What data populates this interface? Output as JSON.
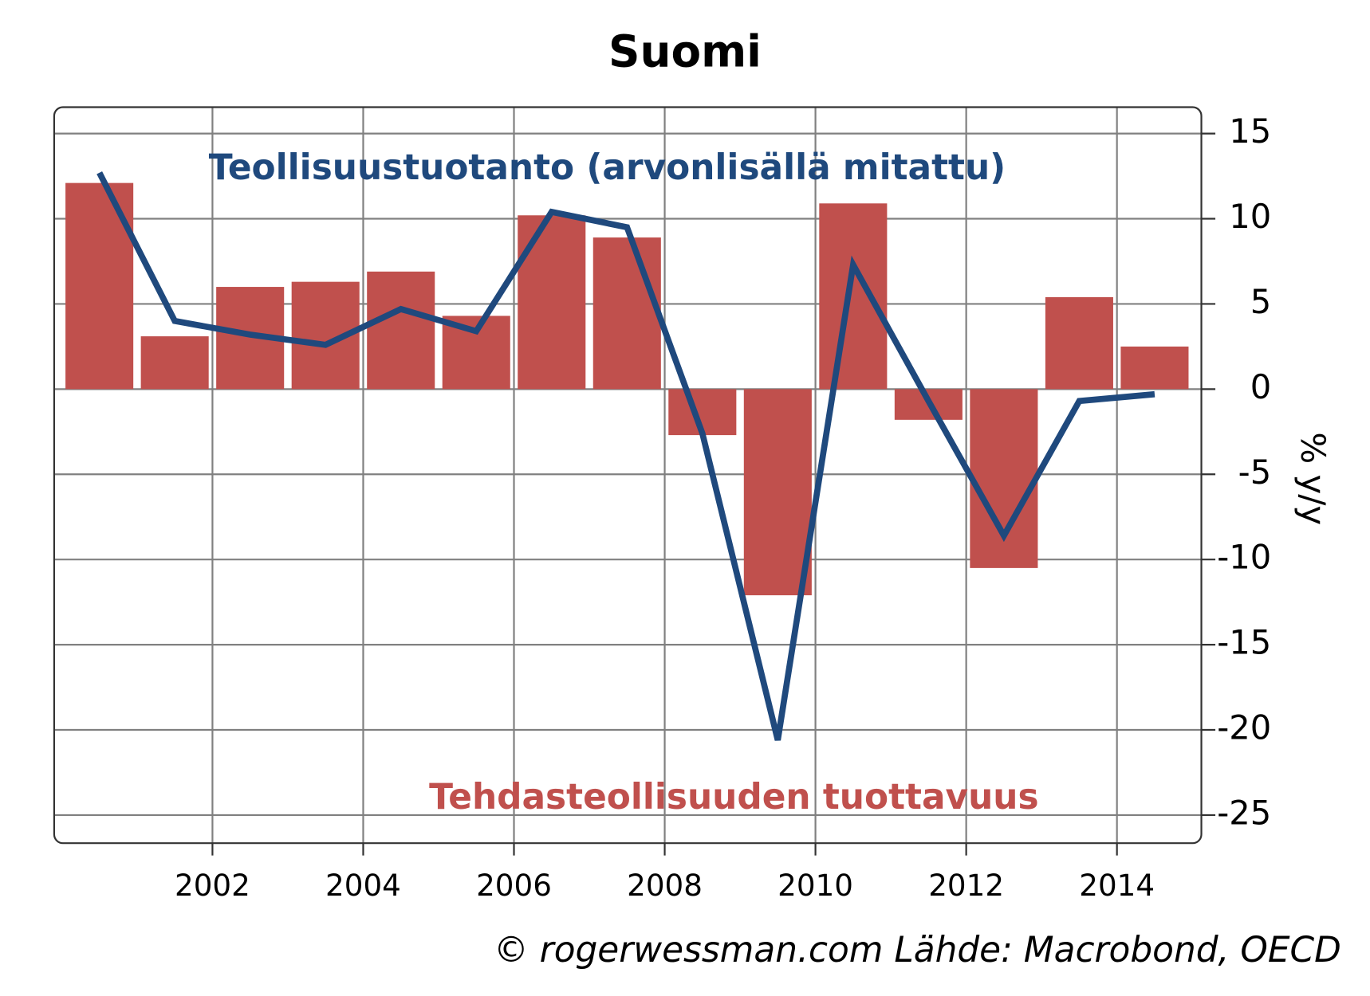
{
  "chart_data": {
    "type": "bar-line",
    "title": "Suomi",
    "y_label": "% y/y",
    "source": "© rogerwessman.com Lähde: Macrobond, OECD",
    "x": [
      2000.5,
      2001.5,
      2002.5,
      2003.5,
      2004.5,
      2005.5,
      2006.5,
      2007.5,
      2008.5,
      2009.5,
      2010.5,
      2011.5,
      2012.5,
      2013.5,
      2014.5
    ],
    "series": [
      {
        "name": "Tehdasteollisuuden tuottavuus",
        "type": "bar",
        "color": "#c0504d",
        "values": [
          12.1,
          3.1,
          6.0,
          6.3,
          6.9,
          4.3,
          10.2,
          8.9,
          -2.7,
          -12.1,
          10.9,
          -1.8,
          -10.5,
          5.4,
          2.5
        ]
      },
      {
        "name": "Teollisuustuotanto (arvonlisällä mitattu)",
        "type": "line",
        "color": "#1f497d",
        "values": [
          12.7,
          4.0,
          3.2,
          2.6,
          4.7,
          3.4,
          10.4,
          9.5,
          -2.6,
          -20.6,
          7.3,
          -0.7,
          -8.6,
          -0.7,
          -0.3
        ]
      }
    ],
    "xlim": [
      1999.9,
      2015.12
    ],
    "xticks": [
      2002,
      2004,
      2006,
      2008,
      2010,
      2012,
      2014
    ],
    "ylim": [
      -26.65,
      16.55
    ],
    "yticks": [
      -25,
      -20,
      -15,
      -10,
      -5,
      0,
      5,
      10,
      15
    ],
    "grid": true,
    "y_axis_side": "right"
  }
}
